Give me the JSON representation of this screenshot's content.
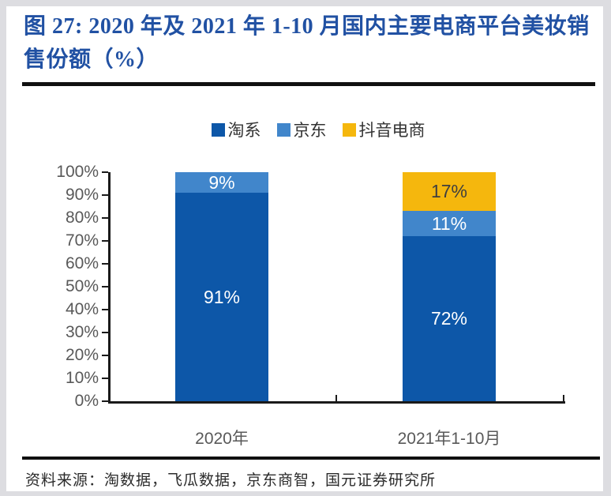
{
  "figure": {
    "title": "图 27: 2020 年及 2021 年 1-10 月国内主要电商平台美妆销售份额（%）",
    "source": "资料来源：淘数据，飞瓜数据，京东商智，国元证券研究所"
  },
  "colors": {
    "title_blue": "#2151A3",
    "taoxi_blue": "#0D57A8",
    "jingdong_blue": "#4186CB",
    "douyin_yellow": "#F5B70D",
    "axis_label_gray": "#595959",
    "axis_line_black": "#1A1A1A"
  },
  "chart_data": {
    "type": "bar",
    "stacked": true,
    "grid": false,
    "legend_position": "top",
    "ylim": [
      0,
      100
    ],
    "y_ticks": [
      "0%",
      "10%",
      "20%",
      "30%",
      "40%",
      "50%",
      "60%",
      "70%",
      "80%",
      "90%",
      "100%"
    ],
    "value_suffix": "%",
    "categories": [
      {
        "key": "2020",
        "label": "2020年"
      },
      {
        "key": "2021-1-10",
        "label": "2021年1-10月"
      }
    ],
    "series": [
      {
        "key": "taoxi",
        "name": "淘系",
        "color": "#0D57A8",
        "label_color": "#FFFFFF",
        "values": [
          91,
          72
        ]
      },
      {
        "key": "jingdong",
        "name": "京东",
        "color": "#4186CB",
        "label_color": "#FFFFFF",
        "values": [
          9,
          11
        ]
      },
      {
        "key": "douyin",
        "name": "抖音电商",
        "color": "#F5B70D",
        "label_color": "#3F3F3F",
        "values": [
          0,
          17
        ]
      }
    ]
  }
}
